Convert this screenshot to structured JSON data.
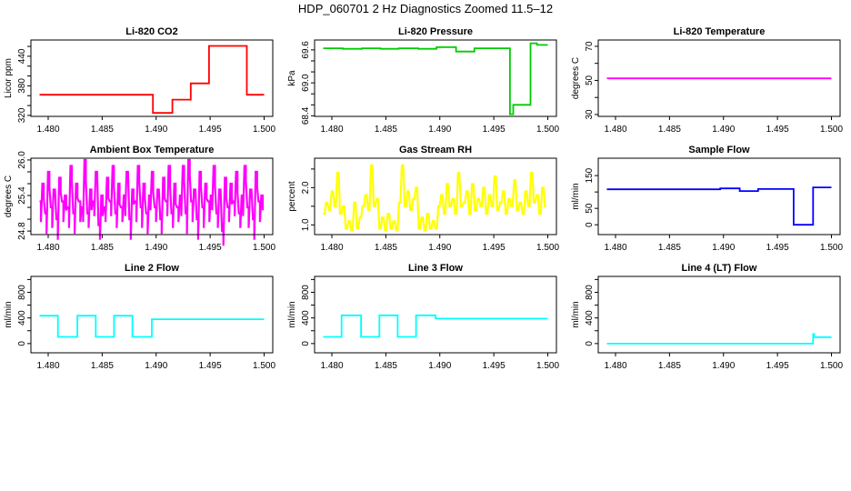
{
  "main_title": "HDP_060701  2 Hz Diagnostics Zoomed 11.5–12",
  "chart_data": [
    {
      "type": "line",
      "title": "Li-820 CO2",
      "xlabel": "",
      "ylabel": "Licor ppm",
      "color": "#ff0000",
      "ylim": [
        318,
        473
      ],
      "xlim": [
        1.4784,
        1.5008
      ],
      "xticks": [
        {
          "v": 1.48,
          "label": "1.480"
        },
        {
          "v": 1.485,
          "label": "1.485"
        },
        {
          "v": 1.49,
          "label": "1.490"
        },
        {
          "v": 1.495,
          "label": "1.495"
        },
        {
          "v": 1.5,
          "label": "1.500"
        }
      ],
      "yticks": [
        {
          "v": 320,
          "label": "320"
        },
        {
          "v": 340,
          "label": ""
        },
        {
          "v": 360,
          "label": ""
        },
        {
          "v": 380,
          "label": "380"
        },
        {
          "v": 400,
          "label": ""
        },
        {
          "v": 420,
          "label": ""
        },
        {
          "v": 440,
          "label": "440"
        },
        {
          "v": 460,
          "label": ""
        }
      ],
      "steps": [
        [
          1.4792,
          1.4897,
          362
        ],
        [
          1.4897,
          1.4915,
          325
        ],
        [
          1.4915,
          1.4932,
          352
        ],
        [
          1.4932,
          1.4949,
          385
        ],
        [
          1.4949,
          1.4984,
          461
        ],
        [
          1.4984,
          1.5,
          362
        ]
      ]
    },
    {
      "type": "line",
      "title": "Li-820 Pressure",
      "xlabel": "",
      "ylabel": "kPa",
      "color": "#00cc00",
      "ylim": [
        68.39,
        69.78
      ],
      "xlim": [
        1.4784,
        1.5008
      ],
      "xticks": [
        {
          "v": 1.48,
          "label": "1.480"
        },
        {
          "v": 1.485,
          "label": "1.485"
        },
        {
          "v": 1.49,
          "label": "1.490"
        },
        {
          "v": 1.495,
          "label": "1.495"
        },
        {
          "v": 1.5,
          "label": "1.500"
        }
      ],
      "yticks": [
        {
          "v": 68.4,
          "label": "68.4"
        },
        {
          "v": 68.6,
          "label": ""
        },
        {
          "v": 68.8,
          "label": ""
        },
        {
          "v": 69.0,
          "label": "69.0"
        },
        {
          "v": 69.2,
          "label": ""
        },
        {
          "v": 69.4,
          "label": ""
        },
        {
          "v": 69.6,
          "label": "69.6"
        }
      ],
      "steps": [
        [
          1.4792,
          1.481,
          69.63
        ],
        [
          1.481,
          1.4828,
          69.62
        ],
        [
          1.4828,
          1.4845,
          69.63
        ],
        [
          1.4845,
          1.4862,
          69.62
        ],
        [
          1.4862,
          1.488,
          69.63
        ],
        [
          1.488,
          1.4897,
          69.62
        ],
        [
          1.4897,
          1.4915,
          69.65
        ],
        [
          1.4915,
          1.4932,
          69.57
        ],
        [
          1.4932,
          1.4965,
          69.63
        ],
        [
          1.4965,
          1.4968,
          68.43
        ],
        [
          1.4968,
          1.4984,
          68.6
        ],
        [
          1.4984,
          1.499,
          69.72
        ],
        [
          1.499,
          1.5,
          69.69
        ]
      ]
    },
    {
      "type": "line",
      "title": "Li-820 Temperature",
      "xlabel": "",
      "ylabel": "degrees C",
      "color": "#ff00ff",
      "ylim": [
        28.9,
        73.7
      ],
      "xlim": [
        1.4784,
        1.5008
      ],
      "xticks": [
        {
          "v": 1.48,
          "label": "1.480"
        },
        {
          "v": 1.485,
          "label": "1.485"
        },
        {
          "v": 1.49,
          "label": "1.490"
        },
        {
          "v": 1.495,
          "label": "1.495"
        },
        {
          "v": 1.5,
          "label": "1.500"
        }
      ],
      "yticks": [
        {
          "v": 30,
          "label": "30"
        },
        {
          "v": 40,
          "label": ""
        },
        {
          "v": 50,
          "label": "50"
        },
        {
          "v": 60,
          "label": ""
        },
        {
          "v": 70,
          "label": "70"
        }
      ],
      "steps": [
        [
          1.4792,
          1.5,
          51.2
        ]
      ]
    },
    {
      "type": "line",
      "title": "Ambient Box Temperature",
      "xlabel": "",
      "ylabel": "degrees C",
      "color": "#ff00ff",
      "ylim": [
        24.74,
        26.03
      ],
      "xlim": [
        1.4784,
        1.5008
      ],
      "xticks": [
        {
          "v": 1.48,
          "label": "1.480"
        },
        {
          "v": 1.485,
          "label": "1.485"
        },
        {
          "v": 1.49,
          "label": "1.490"
        },
        {
          "v": 1.495,
          "label": "1.495"
        },
        {
          "v": 1.5,
          "label": "1.500"
        }
      ],
      "yticks": [
        {
          "v": 24.8,
          "label": "24.8"
        },
        {
          "v": 25.0,
          "label": ""
        },
        {
          "v": 25.2,
          "label": ""
        },
        {
          "v": 25.4,
          "label": "25.4"
        },
        {
          "v": 25.6,
          "label": ""
        },
        {
          "v": 25.8,
          "label": ""
        },
        {
          "v": 26.0,
          "label": "26.0"
        }
      ],
      "x_range": [
        1.4792,
        1.5
      ],
      "samples": [
        25.3,
        25.6,
        25.1,
        25.8,
        25.2,
        25.5,
        25.0,
        25.7,
        25.3,
        25.4,
        25.2,
        25.9,
        25.1,
        25.6,
        25.3,
        25.2,
        26.0,
        25.1,
        25.5,
        25.3,
        25.8,
        24.9,
        25.4,
        25.2,
        25.7,
        25.3,
        25.9,
        25.1,
        25.6,
        25.2,
        25.4,
        25.8,
        25.0,
        25.5,
        25.3,
        25.9,
        25.2,
        25.6,
        25.1,
        25.4,
        25.8,
        25.2,
        25.5,
        25.0,
        25.7,
        25.3,
        25.9,
        25.1,
        25.6,
        25.2,
        25.4,
        25.9,
        25.1,
        26.0,
        25.3,
        25.5,
        25.0,
        25.8,
        25.2,
        25.6,
        25.3,
        25.4,
        25.9,
        25.1,
        25.5,
        24.8,
        25.7,
        25.2,
        25.6,
        25.3,
        25.8,
        25.1,
        25.4,
        25.9,
        25.2,
        25.5,
        25.0,
        25.8,
        25.3,
        25.4
      ]
    },
    {
      "type": "line",
      "title": "Gas Stream RH",
      "xlabel": "",
      "ylabel": "percent",
      "color": "#ffff00",
      "ylim": [
        0.74,
        2.79
      ],
      "xlim": [
        1.4784,
        1.5008
      ],
      "xticks": [
        {
          "v": 1.48,
          "label": "1.480"
        },
        {
          "v": 1.485,
          "label": "1.485"
        },
        {
          "v": 1.49,
          "label": "1.490"
        },
        {
          "v": 1.495,
          "label": "1.495"
        },
        {
          "v": 1.5,
          "label": "1.500"
        }
      ],
      "yticks": [
        {
          "v": 1.0,
          "label": "1.0"
        },
        {
          "v": 1.5,
          "label": ""
        },
        {
          "v": 2.0,
          "label": "2.0"
        },
        {
          "v": 2.5,
          "label": ""
        }
      ],
      "x_range": [
        1.4792,
        1.5
      ],
      "samples": [
        1.3,
        1.6,
        1.4,
        1.9,
        1.5,
        2.4,
        1.3,
        1.5,
        0.9,
        1.1,
        0.85,
        1.6,
        0.9,
        1.2,
        1.5,
        1.8,
        1.4,
        2.6,
        1.5,
        1.7,
        0.9,
        1.2,
        0.85,
        1.3,
        0.9,
        1.1,
        0.85,
        1.6,
        2.6,
        1.5,
        1.9,
        1.4,
        1.7,
        2.0,
        0.9,
        1.2,
        0.85,
        1.3,
        0.9,
        1.1,
        0.9,
        1.5,
        1.8,
        1.3,
        2.1,
        1.5,
        1.7,
        1.3,
        2.4,
        1.5,
        1.6,
        1.9,
        1.3,
        2.1,
        1.4,
        1.7,
        1.5,
        2.0,
        1.3,
        1.8,
        1.5,
        2.3,
        1.4,
        1.6,
        1.9,
        1.3,
        1.7,
        1.5,
        2.2,
        1.4,
        1.6,
        1.3,
        1.9,
        1.5,
        2.4,
        1.6,
        1.8,
        1.3,
        2.0,
        1.5
      ]
    },
    {
      "type": "line",
      "title": "Sample Flow",
      "xlabel": "",
      "ylabel": "ml/min",
      "color": "#0000ff",
      "ylim": [
        -30,
        203
      ],
      "xlim": [
        1.4784,
        1.5008
      ],
      "xticks": [
        {
          "v": 1.48,
          "label": "1.480"
        },
        {
          "v": 1.485,
          "label": "1.485"
        },
        {
          "v": 1.49,
          "label": "1.490"
        },
        {
          "v": 1.495,
          "label": "1.495"
        },
        {
          "v": 1.5,
          "label": "1.500"
        }
      ],
      "yticks": [
        {
          "v": 0,
          "label": "0"
        },
        {
          "v": 50,
          "label": "50"
        },
        {
          "v": 100,
          "label": ""
        },
        {
          "v": 150,
          "label": "150"
        }
      ],
      "steps": [
        [
          1.4792,
          1.4897,
          108
        ],
        [
          1.4897,
          1.4915,
          111
        ],
        [
          1.4915,
          1.4932,
          103
        ],
        [
          1.4932,
          1.4965,
          109
        ],
        [
          1.4965,
          1.4983,
          0
        ],
        [
          1.4983,
          1.5,
          114
        ]
      ]
    },
    {
      "type": "line",
      "title": "Line 2 Flow",
      "xlabel": "",
      "ylabel": "ml/min",
      "color": "#00ffff",
      "ylim": [
        -144,
        1048
      ],
      "xlim": [
        1.4784,
        1.5008
      ],
      "xticks": [
        {
          "v": 1.48,
          "label": "1.480"
        },
        {
          "v": 1.485,
          "label": "1.485"
        },
        {
          "v": 1.49,
          "label": "1.490"
        },
        {
          "v": 1.495,
          "label": "1.495"
        },
        {
          "v": 1.5,
          "label": "1.500"
        }
      ],
      "yticks": [
        {
          "v": 0,
          "label": "0"
        },
        {
          "v": 200,
          "label": ""
        },
        {
          "v": 400,
          "label": "400"
        },
        {
          "v": 600,
          "label": ""
        },
        {
          "v": 800,
          "label": "800"
        },
        {
          "v": 1000,
          "label": ""
        }
      ],
      "steps": [
        [
          1.4792,
          1.4809,
          435
        ],
        [
          1.4809,
          1.4827,
          105
        ],
        [
          1.4827,
          1.4844,
          435
        ],
        [
          1.4844,
          1.4861,
          105
        ],
        [
          1.4861,
          1.4878,
          435
        ],
        [
          1.4878,
          1.4896,
          105
        ],
        [
          1.4896,
          1.5,
          380
        ]
      ]
    },
    {
      "type": "line",
      "title": "Line 3 Flow",
      "xlabel": "",
      "ylabel": "ml/min",
      "color": "#00ffff",
      "ylim": [
        -144,
        1048
      ],
      "xlim": [
        1.4784,
        1.5008
      ],
      "xticks": [
        {
          "v": 1.48,
          "label": "1.480"
        },
        {
          "v": 1.485,
          "label": "1.485"
        },
        {
          "v": 1.49,
          "label": "1.490"
        },
        {
          "v": 1.495,
          "label": "1.495"
        },
        {
          "v": 1.5,
          "label": "1.500"
        }
      ],
      "yticks": [
        {
          "v": 0,
          "label": "0"
        },
        {
          "v": 200,
          "label": ""
        },
        {
          "v": 400,
          "label": "400"
        },
        {
          "v": 600,
          "label": ""
        },
        {
          "v": 800,
          "label": "800"
        },
        {
          "v": 1000,
          "label": ""
        }
      ],
      "steps": [
        [
          1.4792,
          1.4809,
          105
        ],
        [
          1.4809,
          1.4827,
          440
        ],
        [
          1.4827,
          1.4844,
          105
        ],
        [
          1.4844,
          1.4861,
          440
        ],
        [
          1.4861,
          1.4878,
          105
        ],
        [
          1.4878,
          1.4896,
          440
        ],
        [
          1.4896,
          1.5,
          390
        ]
      ]
    },
    {
      "type": "line",
      "title": "Line 4 (LT) Flow",
      "xlabel": "",
      "ylabel": "ml/min",
      "color": "#00ffff",
      "ylim": [
        -144,
        1048
      ],
      "xlim": [
        1.4784,
        1.5008
      ],
      "xticks": [
        {
          "v": 1.48,
          "label": "1.480"
        },
        {
          "v": 1.485,
          "label": "1.485"
        },
        {
          "v": 1.49,
          "label": "1.490"
        },
        {
          "v": 1.495,
          "label": "1.495"
        },
        {
          "v": 1.5,
          "label": "1.500"
        }
      ],
      "yticks": [
        {
          "v": 0,
          "label": "0"
        },
        {
          "v": 200,
          "label": ""
        },
        {
          "v": 400,
          "label": "400"
        },
        {
          "v": 600,
          "label": ""
        },
        {
          "v": 800,
          "label": "800"
        },
        {
          "v": 1000,
          "label": ""
        }
      ],
      "steps": [
        [
          1.4792,
          1.4983,
          0
        ],
        [
          1.4983,
          1.4984,
          150
        ],
        [
          1.4984,
          1.5,
          100
        ]
      ]
    }
  ]
}
